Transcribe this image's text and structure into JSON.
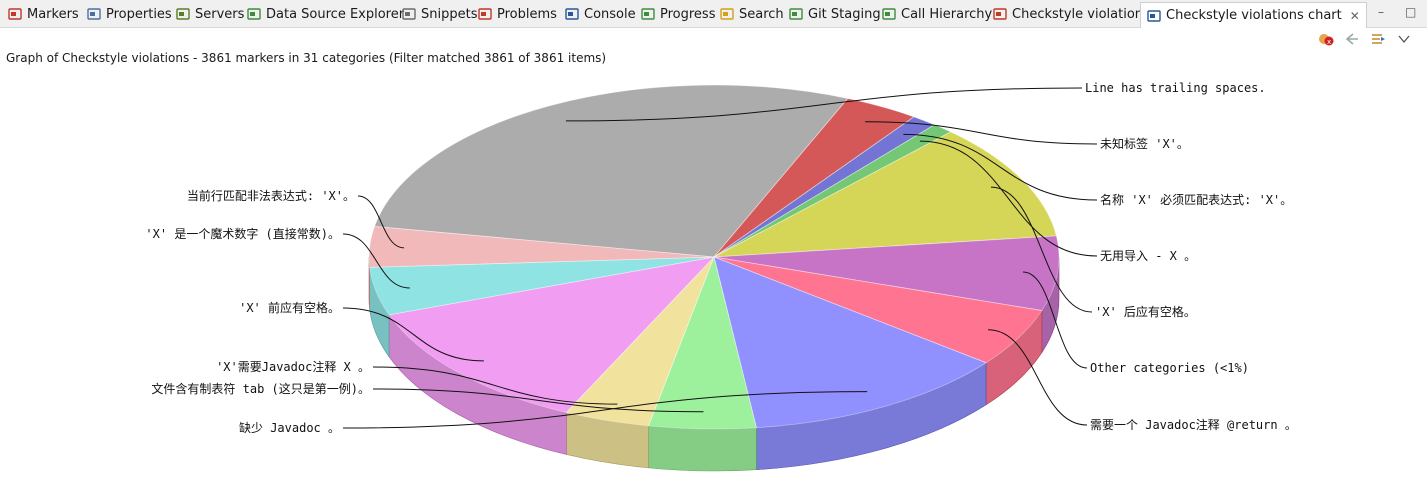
{
  "tabs": [
    {
      "id": "markers",
      "label": "Markers",
      "icon": "markers-icon",
      "color": "#c0392b"
    },
    {
      "id": "properties",
      "label": "Properties",
      "icon": "properties-icon",
      "color": "#4a6fa5"
    },
    {
      "id": "servers",
      "label": "Servers",
      "icon": "servers-icon",
      "color": "#5a7d2a"
    },
    {
      "id": "data-source-explorer",
      "label": "Data Source Explorer",
      "icon": "database-icon",
      "color": "#3c8d3c"
    },
    {
      "id": "snippets",
      "label": "Snippets",
      "icon": "snippets-icon",
      "color": "#6b6b6b"
    },
    {
      "id": "problems",
      "label": "Problems",
      "icon": "problems-icon",
      "color": "#c0392b"
    },
    {
      "id": "console",
      "label": "Console",
      "icon": "console-icon",
      "color": "#2b5797"
    },
    {
      "id": "progress",
      "label": "Progress",
      "icon": "progress-icon",
      "color": "#3c8d3c"
    },
    {
      "id": "search",
      "label": "Search",
      "icon": "search-icon",
      "color": "#d4a017"
    },
    {
      "id": "git-staging",
      "label": "Git Staging",
      "icon": "git-staging-icon",
      "color": "#3c8d3c"
    },
    {
      "id": "call-hierarchy",
      "label": "Call Hierarchy",
      "icon": "call-hierarchy-icon",
      "color": "#3c8d3c"
    },
    {
      "id": "checkstyle-violations",
      "label": "Checkstyle violations",
      "icon": "checkstyle-icon",
      "color": "#c0392b"
    },
    {
      "id": "checkstyle-violations-chart",
      "label": "Checkstyle violations chart",
      "icon": "chart-icon",
      "color": "#2b5797",
      "active": true
    }
  ],
  "header": {
    "summary": "Graph of Checkstyle violations - 3861 markers in 31 categories (Filter matched 3861 of 3861 items)"
  },
  "chart_data": {
    "type": "pie",
    "style": "3d",
    "title": "",
    "slices": [
      {
        "label": "Line has trailing spaces.",
        "share": 0.285,
        "color": "#9a9a9a"
      },
      {
        "label": "未知标签 'X'。",
        "share": 0.035,
        "color": "#cc3333"
      },
      {
        "label": "名称 'X' 必须匹配表达式: 'X'。",
        "share": 0.012,
        "color": "#5555cc"
      },
      {
        "label": "无用导入 - X 。",
        "share": 0.01,
        "color": "#55bb55"
      },
      {
        "label": "'X' 后应有空格。",
        "share": 0.11,
        "color": "#cccc33"
      },
      {
        "label": "Other categories (<1%)",
        "share": 0.07,
        "color": "#bb55bb"
      },
      {
        "label": "需要一个 Javadoc注释 @return 。",
        "share": 0.055,
        "color": "#ff5577"
      },
      {
        "label": "缺少 Javadoc 。",
        "share": 0.125,
        "color": "#7777ff"
      },
      {
        "label": "文件含有制表符 tab (这只是第一例)。",
        "share": 0.05,
        "color": "#88ee88"
      },
      {
        "label": "'X'需要Javadoc注释 X 。",
        "share": 0.04,
        "color": "#eedd88"
      },
      {
        "label": "'X' 前应有空格。",
        "share": 0.125,
        "color": "#ee88ee"
      },
      {
        "label": "'X' 是一个魔术数字 (直接常数)。",
        "share": 0.045,
        "color": "#77dddd"
      },
      {
        "label": "当前行匹配非法表达式: 'X'。",
        "share": 0.038,
        "color": "#eeaaaa"
      }
    ]
  }
}
